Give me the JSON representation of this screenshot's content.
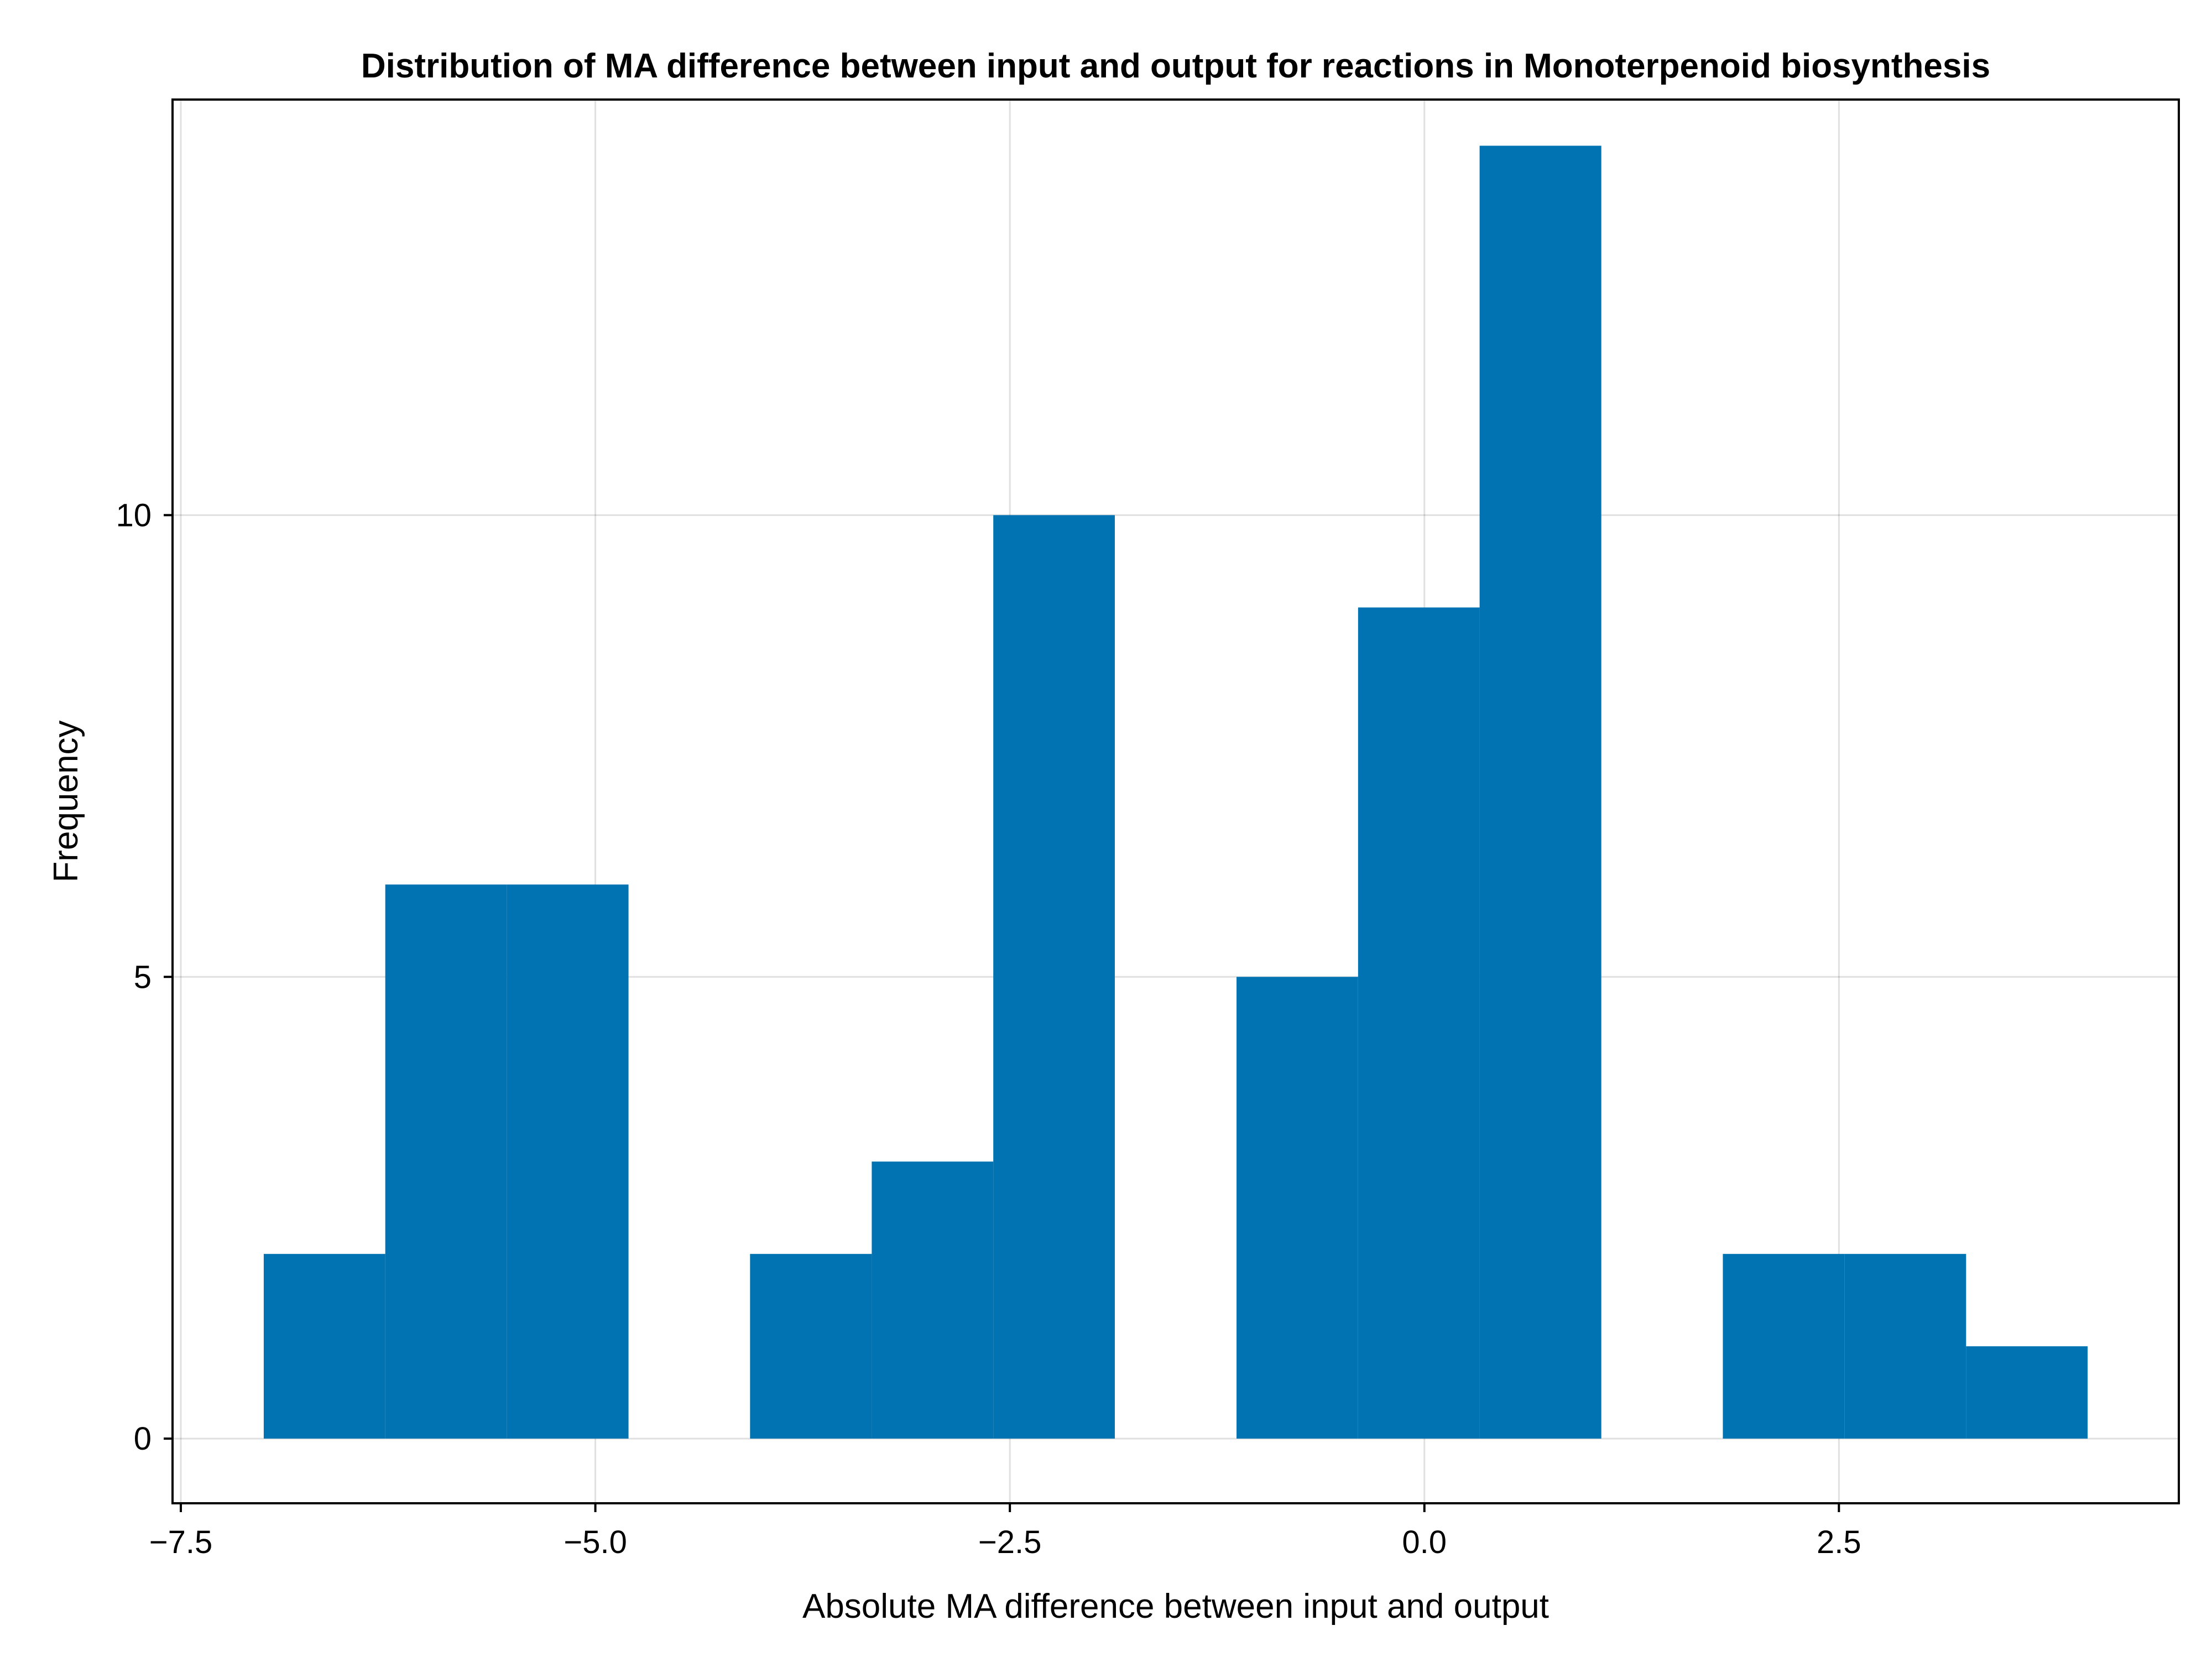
{
  "chart_data": {
    "type": "bar",
    "title": "Distribution of MA difference between input and output for reactions in Monoterpenoid biosynthesis",
    "xlabel": "Absolute MA difference between input and output",
    "ylabel": "Frequency",
    "xlim": [
      -7.55,
      4.55
    ],
    "ylim": [
      -0.7,
      14.5
    ],
    "grid": true,
    "x_ticks": [
      {
        "value": -7.5,
        "label": "−7.5"
      },
      {
        "value": -5.0,
        "label": "−5.0"
      },
      {
        "value": -2.5,
        "label": "−2.5"
      },
      {
        "value": 0.0,
        "label": "0.0"
      },
      {
        "value": 2.5,
        "label": "2.5"
      }
    ],
    "y_ticks": [
      {
        "value": 0,
        "label": "0"
      },
      {
        "value": 5,
        "label": "5"
      },
      {
        "value": 10,
        "label": "10"
      }
    ],
    "bin_edges": [
      -7.0,
      -6.267,
      -5.533,
      -4.8,
      -4.067,
      -3.333,
      -2.6,
      -1.867,
      -1.133,
      -0.4,
      0.333,
      1.067,
      1.8,
      2.533,
      3.267,
      4.0
    ],
    "values": [
      2,
      6,
      6,
      0,
      2,
      3,
      10,
      0,
      5,
      9,
      14,
      0,
      2,
      2,
      1
    ],
    "color": "#0173b2"
  }
}
